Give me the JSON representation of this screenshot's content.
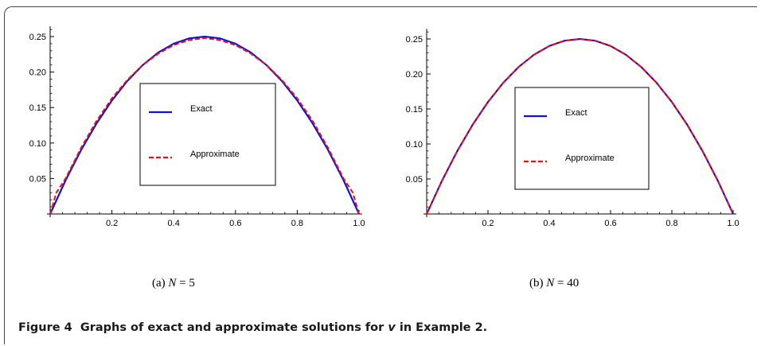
{
  "colors": {
    "exact": "#1010e0",
    "approx": "#e81010",
    "axis": "#000000"
  },
  "figure": {
    "caption_label": "Figure 4",
    "caption_pre": "Graphs of exact and approximate solutions for ",
    "caption_var": "v",
    "caption_post": " in Example 2."
  },
  "chart_data": [
    {
      "type": "line",
      "subcaption": {
        "tag": "(a)",
        "var": "N",
        "eq": " = 5"
      },
      "xlim": [
        0,
        1
      ],
      "ylim": [
        0,
        0.26
      ],
      "xticks": [
        0.2,
        0.4,
        0.6,
        0.8,
        1.0
      ],
      "xtick_labels": [
        "0.2",
        "0.4",
        "0.6",
        "0.8",
        "1.0"
      ],
      "yticks": [
        0.05,
        0.1,
        0.15,
        0.2,
        0.25
      ],
      "ytick_labels": [
        "0.05",
        "0.10",
        "0.15",
        "0.20",
        "0.25"
      ],
      "grid": false,
      "legend": "center",
      "series": [
        {
          "name": "Exact",
          "style": "solid",
          "x": [
            0,
            0.05,
            0.1,
            0.15,
            0.2,
            0.25,
            0.3,
            0.35,
            0.4,
            0.45,
            0.5,
            0.55,
            0.6,
            0.65,
            0.7,
            0.75,
            0.8,
            0.85,
            0.9,
            0.95,
            1.0
          ],
          "y": [
            0,
            0.0475,
            0.09,
            0.1275,
            0.16,
            0.1875,
            0.21,
            0.2275,
            0.24,
            0.2475,
            0.25,
            0.2475,
            0.24,
            0.2275,
            0.21,
            0.1875,
            0.16,
            0.1275,
            0.09,
            0.0475,
            0
          ]
        },
        {
          "name": "Approximate",
          "style": "dashed",
          "x": [
            0,
            0.02,
            0.05,
            0.1,
            0.15,
            0.2,
            0.25,
            0.3,
            0.35,
            0.4,
            0.45,
            0.5,
            0.55,
            0.6,
            0.65,
            0.7,
            0.75,
            0.8,
            0.85,
            0.9,
            0.95,
            0.98,
            1.0
          ],
          "y": [
            0,
            0.03,
            0.05,
            0.093,
            0.131,
            0.163,
            0.189,
            0.21,
            0.226,
            0.238,
            0.245,
            0.248,
            0.245,
            0.238,
            0.226,
            0.21,
            0.189,
            0.163,
            0.131,
            0.093,
            0.05,
            0.03,
            0
          ]
        }
      ]
    },
    {
      "type": "line",
      "subcaption": {
        "tag": "(b)",
        "var": "N",
        "eq": " = 40"
      },
      "xlim": [
        0,
        1
      ],
      "ylim": [
        0,
        0.26
      ],
      "xticks": [
        0.2,
        0.4,
        0.6,
        0.8,
        1.0
      ],
      "xtick_labels": [
        "0.2",
        "0.4",
        "0.6",
        "0.8",
        "1.0"
      ],
      "yticks": [
        0.05,
        0.1,
        0.15,
        0.2,
        0.25
      ],
      "ytick_labels": [
        "0.05",
        "0.10",
        "0.15",
        "0.20",
        "0.25"
      ],
      "grid": false,
      "legend": "center",
      "series": [
        {
          "name": "Exact",
          "style": "solid",
          "x": [
            0,
            0.05,
            0.1,
            0.15,
            0.2,
            0.25,
            0.3,
            0.35,
            0.4,
            0.45,
            0.5,
            0.55,
            0.6,
            0.65,
            0.7,
            0.75,
            0.8,
            0.85,
            0.9,
            0.95,
            1.0
          ],
          "y": [
            0,
            0.0475,
            0.09,
            0.1275,
            0.16,
            0.1875,
            0.21,
            0.2275,
            0.24,
            0.2475,
            0.25,
            0.2475,
            0.24,
            0.2275,
            0.21,
            0.1875,
            0.16,
            0.1275,
            0.09,
            0.0475,
            0
          ]
        },
        {
          "name": "Approximate",
          "style": "dashed",
          "x": [
            0,
            0.05,
            0.1,
            0.15,
            0.2,
            0.25,
            0.3,
            0.35,
            0.4,
            0.45,
            0.5,
            0.55,
            0.6,
            0.65,
            0.7,
            0.75,
            0.8,
            0.85,
            0.9,
            0.95,
            1.0
          ],
          "y": [
            0,
            0.0475,
            0.09,
            0.1275,
            0.16,
            0.1875,
            0.21,
            0.2275,
            0.24,
            0.2475,
            0.25,
            0.2475,
            0.24,
            0.2275,
            0.21,
            0.1875,
            0.16,
            0.1275,
            0.09,
            0.0475,
            0
          ]
        }
      ]
    }
  ]
}
